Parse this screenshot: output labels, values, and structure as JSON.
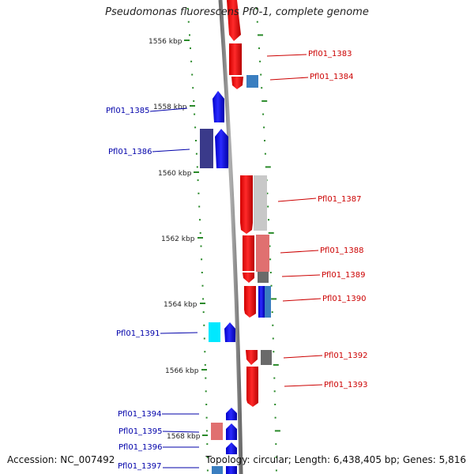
{
  "title": "Pseudomonas fluorescens Pf0-1, complete genome",
  "footer": {
    "accession": "Accession: NC_007492",
    "topology": "Topology: circular; Length: 6,438,405 bp; Genes: 5,816"
  },
  "ticks": [
    {
      "label": "1556 kbp",
      "kbp": 1556
    },
    {
      "label": "1558 kbp",
      "kbp": 1558
    },
    {
      "label": "1560 kbp",
      "kbp": 1560
    },
    {
      "label": "1562 kbp",
      "kbp": 1562
    },
    {
      "label": "1564 kbp",
      "kbp": 1564
    },
    {
      "label": "1566 kbp",
      "kbp": 1566
    },
    {
      "label": "1568 kbp",
      "kbp": 1568
    }
  ],
  "genes": [
    {
      "label": "Pfl01_1383",
      "strand": "forward",
      "color": "#ff0000"
    },
    {
      "label": "Pfl01_1384",
      "strand": "forward",
      "color": "#ff0000"
    },
    {
      "label": "Pfl01_1385",
      "strand": "reverse",
      "color": "#0000ff"
    },
    {
      "label": "Pfl01_1386",
      "strand": "reverse",
      "color": "#0000ff"
    },
    {
      "label": "Pfl01_1387",
      "strand": "forward",
      "color": "#ff0000"
    },
    {
      "label": "Pfl01_1388",
      "strand": "forward",
      "color": "#ff0000"
    },
    {
      "label": "Pfl01_1389",
      "strand": "forward",
      "color": "#ff0000"
    },
    {
      "label": "Pfl01_1390",
      "strand": "forward",
      "color": "#ff0000"
    },
    {
      "label": "Pfl01_1391",
      "strand": "reverse",
      "color": "#0000ff"
    },
    {
      "label": "Pfl01_1392",
      "strand": "forward",
      "color": "#ff0000"
    },
    {
      "label": "Pfl01_1393",
      "strand": "forward",
      "color": "#ff0000"
    },
    {
      "label": "Pfl01_1394",
      "strand": "reverse",
      "color": "#0000ff"
    },
    {
      "label": "Pfl01_1395",
      "strand": "reverse",
      "color": "#0000ff"
    },
    {
      "label": "Pfl01_1396",
      "strand": "reverse",
      "color": "#0000ff"
    },
    {
      "label": "Pfl01_1397",
      "strand": "reverse",
      "color": "#0000ff"
    }
  ],
  "colors": {
    "forward_gene": "#ff0000",
    "reverse_gene": "#0000ff",
    "backbone": "#888888",
    "tick_marks": "#2a8a2a",
    "forward_label": "#cc0000",
    "reverse_label": "#0000aa"
  }
}
